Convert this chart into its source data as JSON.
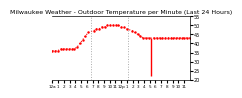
{
  "title": "Milwaukee Weather - Outdoor Temperature per Minute (Last 24 Hours)",
  "title_fontsize": 4.5,
  "background_color": "#ffffff",
  "plot_bg_color": "#ffffff",
  "line_color": "#ff0000",
  "vline_color": "#aaaaaa",
  "line_style": "dotted",
  "line_width": 0.8,
  "marker": ".",
  "marker_size": 1.5,
  "ylim": [
    20,
    55
  ],
  "yticks": [
    20,
    25,
    30,
    35,
    40,
    45,
    50,
    55
  ],
  "ytick_fontsize": 3.5,
  "xtick_fontsize": 3.0,
  "vlines": [
    0.28,
    0.55
  ],
  "x_data": [
    0.0,
    0.02,
    0.04,
    0.06,
    0.08,
    0.1,
    0.12,
    0.14,
    0.16,
    0.18,
    0.2,
    0.22,
    0.24,
    0.26,
    0.3,
    0.32,
    0.34,
    0.36,
    0.38,
    0.4,
    0.42,
    0.44,
    0.46,
    0.48,
    0.5,
    0.52,
    0.54,
    0.58,
    0.6,
    0.62,
    0.64,
    0.66,
    0.68,
    0.7,
    0.74,
    0.76,
    0.78,
    0.8,
    0.82,
    0.84,
    0.86,
    0.88,
    0.9,
    0.92,
    0.94,
    0.96,
    0.98,
    1.0
  ],
  "y_data": [
    36,
    36,
    36,
    37,
    37,
    37,
    37,
    37,
    37,
    38,
    40,
    42,
    44,
    46,
    47,
    48,
    48,
    49,
    49,
    50,
    50,
    50,
    50,
    50,
    49,
    49,
    48,
    47,
    46,
    45,
    44,
    43,
    43,
    43,
    43,
    43,
    43,
    43,
    43,
    43,
    43,
    43,
    43,
    43,
    43,
    43,
    43,
    43
  ],
  "spike_x": 0.72,
  "spike_y_top": 43,
  "spike_y_bot": 22,
  "xtick_labels": [
    "12a",
    "1",
    "2",
    "3",
    "4",
    "5",
    "6",
    "7",
    "8",
    "9",
    "10",
    "11",
    "12p",
    "1",
    "2",
    "3",
    "4",
    "5",
    "6",
    "7",
    "8",
    "9",
    "10",
    "11"
  ],
  "xtick_positions": [
    0.0,
    0.042,
    0.083,
    0.125,
    0.167,
    0.208,
    0.25,
    0.292,
    0.333,
    0.375,
    0.417,
    0.458,
    0.5,
    0.542,
    0.583,
    0.625,
    0.667,
    0.708,
    0.75,
    0.792,
    0.833,
    0.875,
    0.917,
    0.958
  ]
}
